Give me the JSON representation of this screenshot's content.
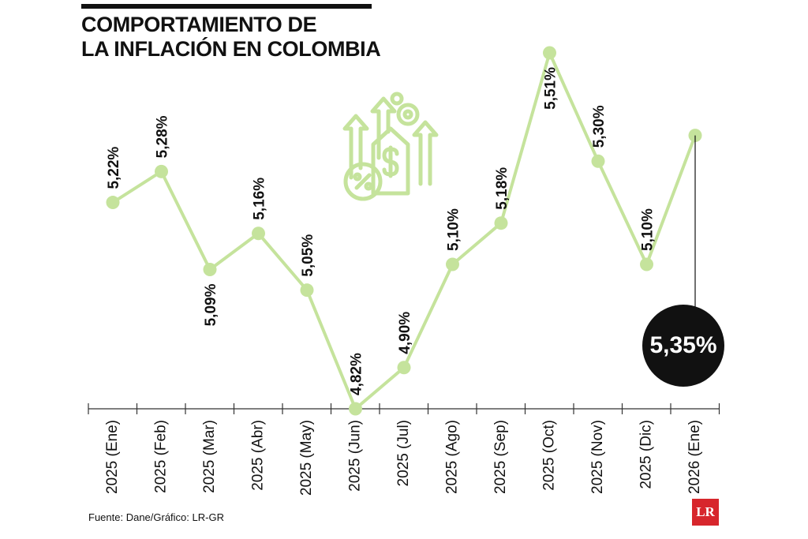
{
  "title_line1": "COMPORTAMIENTO DE",
  "title_line2": "LA INFLACIÓN EN COLOMBIA",
  "source": "Fuente: Dane/Gráfico: LR-GR",
  "logo": "LR",
  "icon": "inflation-money-arrows-icon",
  "colors": {
    "line": "#c5e39c",
    "callout": "#111111",
    "logo": "#d7262c"
  },
  "chart_data": {
    "type": "line",
    "title": "COMPORTAMIENTO DE LA INFLACIÓN EN COLOMBIA",
    "xlabel": "",
    "ylabel": "",
    "categories": [
      "2025 (Ene)",
      "2025 (Feb)",
      "2025 (Mar)",
      "2025 (Abr)",
      "2025 (May)",
      "2025 (Jun)",
      "2025 (Jul)",
      "2025 (Ago)",
      "2025 (Sep)",
      "2025 (Oct)",
      "2025 (Nov)",
      "2025 (Dic)",
      "2026 (Ene)"
    ],
    "values": [
      5.22,
      5.28,
      5.09,
      5.16,
      5.05,
      4.82,
      4.9,
      5.1,
      5.18,
      5.51,
      5.3,
      5.1,
      5.35
    ],
    "labels": [
      "5,22%",
      "5,28%",
      "5,09%",
      "5,16%",
      "5,05%",
      "4,82%",
      "4,90%",
      "5,10%",
      "5,18%",
      "5,51%",
      "5,30%",
      "5,10%",
      "5,35%"
    ],
    "highlight": {
      "index": 12,
      "label": "5,35%"
    },
    "grid": false,
    "legend": "none"
  }
}
